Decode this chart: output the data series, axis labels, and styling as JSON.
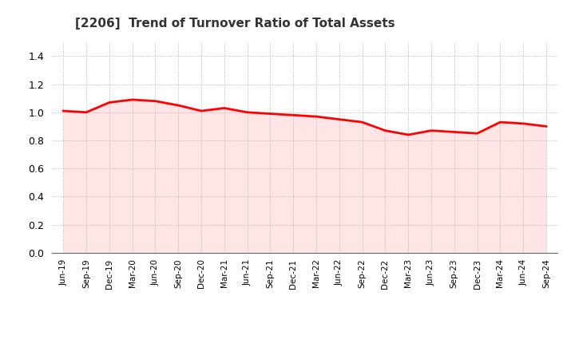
{
  "title": "[2206]  Trend of Turnover Ratio of Total Assets",
  "title_fontsize": 11,
  "line_color": "#ff0000",
  "fill_color": "#ff9999",
  "fill_alpha": 0.25,
  "line_width": 2.0,
  "background_color": "#ffffff",
  "grid_color": "#aaaaaa",
  "ylim": [
    0.0,
    1.5
  ],
  "yticks": [
    0.0,
    0.2,
    0.4,
    0.6,
    0.8,
    1.0,
    1.2,
    1.4
  ],
  "x_labels": [
    "Jun-19",
    "Sep-19",
    "Dec-19",
    "Mar-20",
    "Jun-20",
    "Sep-20",
    "Dec-20",
    "Mar-21",
    "Jun-21",
    "Sep-21",
    "Dec-21",
    "Mar-22",
    "Jun-22",
    "Sep-22",
    "Dec-22",
    "Mar-23",
    "Jun-23",
    "Sep-23",
    "Dec-23",
    "Mar-24",
    "Jun-24",
    "Sep-24"
  ],
  "values": [
    1.01,
    1.0,
    1.07,
    1.09,
    1.08,
    1.05,
    1.01,
    1.03,
    1.0,
    0.99,
    0.98,
    0.97,
    0.95,
    0.93,
    0.87,
    0.84,
    0.87,
    0.86,
    0.85,
    0.93,
    0.92,
    0.9
  ]
}
